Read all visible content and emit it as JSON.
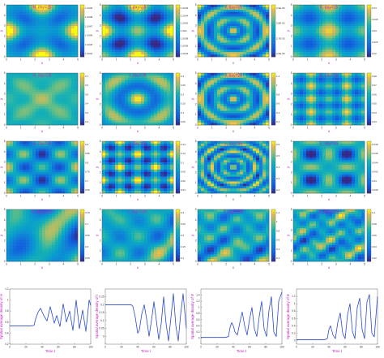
{
  "figure": {
    "grid": "5 rows x 4 columns",
    "colormap": "parula",
    "title_color": "#c020c0",
    "line_color": "#2a4ad0"
  },
  "chart_data": [
    {
      "type": "heatmap",
      "title": "H, day=15",
      "xlabel": "x",
      "ylabel": "y",
      "xticks": [
        "0",
        "1",
        "2",
        "3",
        "4",
        "5"
      ],
      "yticks": [
        "0",
        "1",
        "2",
        "3",
        "4",
        "5"
      ],
      "colorbar_ticks": [
        "1.0049",
        "1.0048",
        "1.0047",
        "1.0046",
        "1.0045",
        "1.0044"
      ],
      "pattern": "cross-dark-center",
      "freq": 1
    },
    {
      "type": "heatmap",
      "title": "I, day=15",
      "xlabel": "x",
      "ylabel": "y",
      "xticks": [
        "0",
        "1",
        "2",
        "3",
        "4",
        "5"
      ],
      "yticks": [
        "0",
        "1",
        "2",
        "3",
        "4",
        "5"
      ],
      "colorbar_ticks": [
        "1.0046",
        "1.0044",
        "1.0042",
        "1.004",
        "1.0038",
        "1.0036",
        "1.0034"
      ],
      "pattern": "grid-bright",
      "freq": 1
    },
    {
      "type": "heatmap",
      "title": "V, day=15",
      "xlabel": "x",
      "ylabel": "y",
      "xticks": [
        "0",
        "1",
        "2",
        "3",
        "4",
        "5"
      ],
      "yticks": [
        "0",
        "1",
        "2",
        "3",
        "4",
        "5"
      ],
      "colorbar_ticks": [
        "2.9E-05",
        "2.8E-05",
        "2.7E-05",
        "2.6E-05"
      ],
      "pattern": "rings",
      "freq": 2
    },
    {
      "type": "heatmap",
      "title": "E, day=15",
      "xlabel": "x",
      "ylabel": "y",
      "xticks": [
        "0",
        "1",
        "2",
        "3",
        "4",
        "5"
      ],
      "yticks": [
        "0",
        "1",
        "2",
        "3",
        "4",
        "5"
      ],
      "colorbar_ticks": [
        "0.04",
        "0.035",
        "0.03",
        "0.025",
        "0.02"
      ],
      "pattern": "lattice",
      "freq": 1
    },
    {
      "type": "heatmap",
      "title": "H, day=28",
      "xlabel": "x",
      "ylabel": "y",
      "xticks": [
        "0",
        "1",
        "2",
        "3",
        "4",
        "5"
      ],
      "yticks": [
        "0",
        "1",
        "2",
        "3",
        "4",
        "5"
      ],
      "colorbar_ticks": [
        "0.7",
        "0.6",
        "0.5",
        "0.4",
        "0.3",
        "0.2"
      ],
      "pattern": "x-cross",
      "freq": 1
    },
    {
      "type": "heatmap",
      "title": "I, day=28",
      "xlabel": "x",
      "ylabel": "y",
      "xticks": [
        "0",
        "1",
        "2",
        "3",
        "4",
        "5"
      ],
      "yticks": [
        "0",
        "1",
        "2",
        "3",
        "4",
        "5"
      ],
      "colorbar_ticks": [
        "0.3",
        "0.25",
        "0.2",
        "0.15",
        "0.1",
        "0.05"
      ],
      "pattern": "rings",
      "freq": 1
    },
    {
      "type": "heatmap",
      "title": "V, day=28",
      "xlabel": "x",
      "ylabel": "y",
      "xticks": [
        "0",
        "1",
        "2",
        "3",
        "4",
        "5"
      ],
      "yticks": [
        "0",
        "1",
        "2",
        "3",
        "4",
        "5"
      ],
      "colorbar_ticks": [
        "1.2",
        "1",
        "0.8",
        "0.6",
        "0.4",
        "0.2"
      ],
      "pattern": "rings",
      "freq": 2
    },
    {
      "type": "heatmap",
      "title": "E, day=28",
      "xlabel": "x",
      "ylabel": "y",
      "xticks": [
        "0",
        "1",
        "2",
        "3",
        "4",
        "5"
      ],
      "yticks": [
        "0",
        "1",
        "2",
        "3",
        "4",
        "5"
      ],
      "colorbar_ticks": [
        "0.08",
        "0.07",
        "0.06",
        "0.05",
        "0.04",
        "0.03"
      ],
      "pattern": "lattice",
      "freq": 2
    },
    {
      "type": "heatmap",
      "title": "H, day=45",
      "xlabel": "x",
      "ylabel": "y",
      "xticks": [
        "0",
        "1",
        "2",
        "3",
        "4",
        "5"
      ],
      "yticks": [
        "0",
        "1",
        "2",
        "3",
        "4",
        "5"
      ],
      "colorbar_ticks": [
        "0.9",
        "0.85",
        "0.8",
        "0.75",
        "0.7",
        "0.65"
      ],
      "pattern": "four-spots",
      "freq": 1
    },
    {
      "type": "heatmap",
      "title": "I, day=45",
      "xlabel": "x",
      "ylabel": "y",
      "xticks": [
        "0",
        "1",
        "2",
        "3",
        "4",
        "5"
      ],
      "yticks": [
        "0",
        "1",
        "2",
        "3",
        "4",
        "5"
      ],
      "colorbar_ticks": [
        "0.14",
        "0.12",
        "0.1",
        "0.08",
        "0.06",
        "0.04"
      ],
      "pattern": "grid-bright",
      "freq": 2
    },
    {
      "type": "heatmap",
      "title": "V, day=45",
      "xlabel": "x",
      "ylabel": "y",
      "xticks": [
        "0",
        "1",
        "2",
        "3",
        "4",
        "5"
      ],
      "yticks": [
        "0",
        "1",
        "2",
        "3",
        "4",
        "5"
      ],
      "colorbar_ticks": [
        "0.6",
        "0.5",
        "0.4",
        "0.3",
        "0.2"
      ],
      "pattern": "rings",
      "freq": 3
    },
    {
      "type": "heatmap",
      "title": "E, day=45",
      "xlabel": "x",
      "ylabel": "y",
      "xticks": [
        "0",
        "1",
        "2",
        "3",
        "4",
        "5"
      ],
      "yticks": [
        "0",
        "1",
        "2",
        "3",
        "4",
        "5"
      ],
      "colorbar_ticks": [
        "0.048",
        "0.046",
        "0.044",
        "0.042",
        "0.04",
        "0.038"
      ],
      "pattern": "cross-dark-center",
      "freq": 2
    },
    {
      "type": "heatmap",
      "title": "H, day=100",
      "xlabel": "x",
      "ylabel": "y",
      "xticks": [
        "0",
        "1",
        "2",
        "3",
        "4",
        "5"
      ],
      "yticks": [
        "0",
        "1",
        "2",
        "3",
        "4",
        "5"
      ],
      "colorbar_ticks": [
        "0.75",
        "0.7",
        "0.65",
        "0.6",
        "0.55"
      ],
      "pattern": "irregular",
      "freq": 1
    },
    {
      "type": "heatmap",
      "title": "I, day=100",
      "xlabel": "x",
      "ylabel": "y",
      "xticks": [
        "0",
        "1",
        "2",
        "3",
        "4",
        "5"
      ],
      "yticks": [
        "0",
        "1",
        "2",
        "3",
        "4",
        "5"
      ],
      "colorbar_ticks": [
        "0.3",
        "0.25",
        "0.2",
        "0.15",
        "0.1"
      ],
      "pattern": "irregular",
      "freq": 2
    },
    {
      "type": "heatmap",
      "title": "V, day=100",
      "xlabel": "x",
      "ylabel": "y",
      "xticks": [
        "0",
        "1",
        "2",
        "3",
        "4",
        "5"
      ],
      "yticks": [
        "0",
        "1",
        "2",
        "3",
        "4",
        "5"
      ],
      "colorbar_ticks": [
        "1.2",
        "1",
        "0.8",
        "0.6",
        "0.4",
        "0.2"
      ],
      "pattern": "irregular",
      "freq": 3
    },
    {
      "type": "heatmap",
      "title": "E, day=100",
      "xlabel": "x",
      "ylabel": "y",
      "xticks": [
        "0",
        "1",
        "2",
        "3",
        "4",
        "5"
      ],
      "yticks": [
        "0",
        "1",
        "2",
        "3",
        "4",
        "5"
      ],
      "colorbar_ticks": [
        "0.1",
        "0.08",
        "0.06",
        "0.04",
        "0.02"
      ],
      "pattern": "irregular",
      "freq": 4
    },
    {
      "type": "line",
      "xlabel": "Time t",
      "ylabel": "Spatial average density of H",
      "xlim": [
        0,
        100
      ],
      "ylim": [
        0.2,
        1.2
      ],
      "xticks": [
        "0",
        "20",
        "40",
        "60",
        "80",
        "100"
      ],
      "yticks": [
        "0.2",
        "0.4",
        "0.6",
        "0.8",
        "1",
        "1.2"
      ],
      "series": [
        {
          "x": [
            0,
            20,
            25,
            30,
            32,
            35,
            38,
            42,
            46,
            50,
            55,
            58,
            62,
            66,
            70,
            74,
            78,
            82,
            86,
            90,
            94,
            98,
            100
          ],
          "y": [
            0.53,
            0.53,
            0.53,
            0.54,
            0.66,
            0.78,
            0.85,
            0.72,
            0.62,
            0.88,
            0.58,
            0.72,
            0.52,
            0.93,
            0.6,
            0.8,
            0.45,
            1.0,
            0.48,
            0.82,
            0.43,
            1.0,
            0.9
          ]
        }
      ]
    },
    {
      "type": "line",
      "xlabel": "Time t",
      "ylabel": "Spatial average density of I",
      "xlim": [
        0,
        100
      ],
      "ylim": [
        -0.05,
        0.3
      ],
      "xticks": [
        "0",
        "20",
        "40",
        "60",
        "80",
        "100"
      ],
      "yticks": [
        "0",
        "0.05",
        "0.1",
        "0.15",
        "0.2",
        "0.25"
      ],
      "series": [
        {
          "x": [
            0,
            28,
            32,
            34,
            37,
            40,
            42,
            45,
            48,
            51,
            54,
            57,
            60,
            63,
            66,
            69,
            72,
            75,
            78,
            81,
            84,
            87,
            90,
            93,
            96,
            100
          ],
          "y": [
            0.2,
            0.2,
            0.2,
            0.19,
            0.12,
            0.02,
            0.04,
            0.14,
            0.2,
            0.11,
            0.0,
            0.1,
            0.22,
            0.1,
            -0.02,
            0.08,
            0.25,
            0.08,
            -0.03,
            0.12,
            0.27,
            0.07,
            -0.03,
            0.14,
            0.27,
            0.05
          ]
        }
      ]
    },
    {
      "type": "line",
      "xlabel": "Time t",
      "ylabel": "Spatial average density of V",
      "xlim": [
        0,
        100
      ],
      "ylim": [
        -0.2,
        1.6
      ],
      "xticks": [
        "0",
        "20",
        "40",
        "60",
        "80",
        "100"
      ],
      "yticks": [
        "0",
        "0.2",
        "0.4",
        "0.6",
        "0.8",
        "1",
        "1.2",
        "1.4"
      ],
      "series": [
        {
          "x": [
            0,
            30,
            34,
            36,
            38,
            40,
            42,
            45,
            48,
            51,
            54,
            57,
            60,
            63,
            66,
            69,
            72,
            75,
            78,
            81,
            84,
            87,
            90,
            93,
            96,
            100
          ],
          "y": [
            0.02,
            0.02,
            0.05,
            0.35,
            0.5,
            0.4,
            0.2,
            0.1,
            0.5,
            0.85,
            0.4,
            0.1,
            0.6,
            1.0,
            0.3,
            0.05,
            0.7,
            1.2,
            0.3,
            0.05,
            0.9,
            1.35,
            0.2,
            0.05,
            1.2,
            1.5
          ]
        }
      ]
    },
    {
      "type": "line",
      "xlabel": "Time t",
      "ylabel": "Spatial average density of E",
      "xlim": [
        0,
        100
      ],
      "ylim": [
        -0.1,
        1.4
      ],
      "xticks": [
        "0",
        "20",
        "40",
        "60",
        "80",
        "100"
      ],
      "yticks": [
        "0",
        "0.2",
        "0.4",
        "0.6",
        "0.8",
        "1",
        "1.2"
      ],
      "series": [
        {
          "x": [
            0,
            34,
            38,
            40,
            42,
            45,
            48,
            51,
            54,
            57,
            60,
            63,
            66,
            69,
            72,
            75,
            78,
            81,
            84,
            87,
            90,
            93,
            96,
            100
          ],
          "y": [
            0.02,
            0.02,
            0.05,
            0.3,
            0.4,
            0.15,
            0.05,
            0.5,
            0.75,
            0.2,
            0.05,
            0.7,
            1.0,
            0.25,
            0.05,
            0.9,
            1.15,
            0.3,
            0.05,
            1.05,
            1.25,
            0.2,
            0.1,
            1.2
          ]
        }
      ]
    }
  ]
}
